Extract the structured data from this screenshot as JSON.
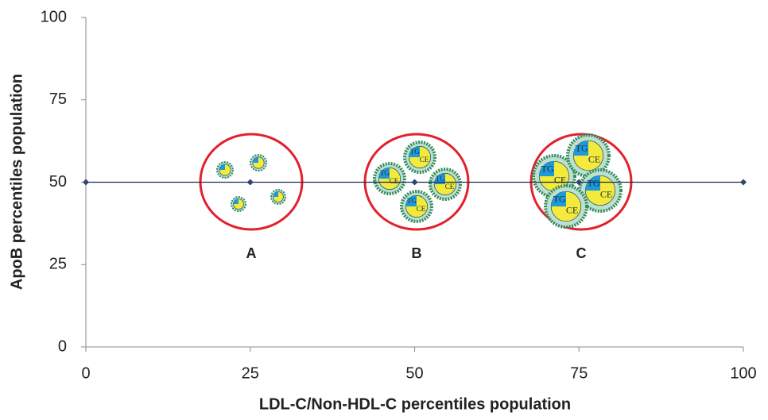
{
  "chart_data": {
    "type": "line",
    "x": [
      0,
      25,
      50,
      75,
      100
    ],
    "series": [
      {
        "color": "#1f2d4e",
        "values": [
          50,
          50,
          50,
          50,
          50
        ]
      }
    ],
    "xlim": [
      0,
      100
    ],
    "ylim": [
      0,
      100
    ],
    "xticks": [
      0,
      25,
      50,
      75,
      100
    ],
    "yticks": [
      0,
      25,
      50,
      75,
      100
    ],
    "grid": false,
    "x_label": "LDL-C/Non-HDL-C percentiles population",
    "y_label": "ApoB percentiles population",
    "annotations": [
      "A",
      "B",
      "C"
    ],
    "particle_labels": [
      "TG",
      "CE"
    ]
  }
}
